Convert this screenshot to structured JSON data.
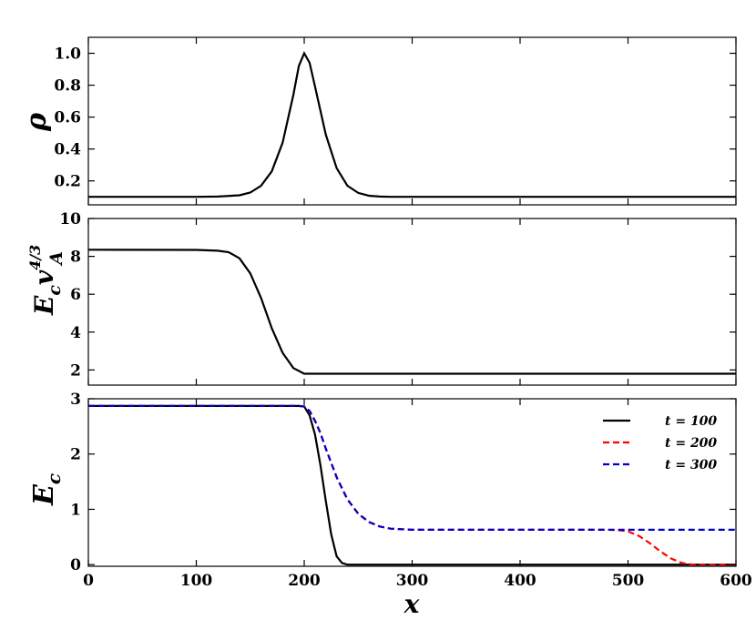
{
  "chart_data": [
    {
      "type": "line",
      "ylabel": "ρ",
      "xlim": [
        0,
        600
      ],
      "ylim": [
        0.05,
        1.1
      ],
      "yticks": [
        "0.2",
        "0.4",
        "0.6",
        "0.8",
        "1.0"
      ],
      "grid": false,
      "series": [
        {
          "color": "#000000",
          "style": "solid",
          "x": [
            0,
            100,
            120,
            140,
            150,
            160,
            170,
            180,
            190,
            195,
            200,
            205,
            210,
            220,
            230,
            240,
            250,
            260,
            270,
            280,
            300,
            400,
            500,
            600
          ],
          "y": [
            0.1,
            0.1,
            0.102,
            0.11,
            0.127,
            0.17,
            0.26,
            0.44,
            0.74,
            0.92,
            1.0,
            0.94,
            0.79,
            0.49,
            0.28,
            0.17,
            0.125,
            0.107,
            0.102,
            0.1,
            0.1,
            0.1,
            0.1,
            0.1
          ]
        }
      ]
    },
    {
      "type": "line",
      "ylabel": "E_c v_A^{4/3}",
      "ylabel_main": "E",
      "ylabel_sub1": "c",
      "ylabel_v": "v",
      "ylabel_sup": "4/3",
      "ylabel_sub2": "A",
      "xlim": [
        0,
        600
      ],
      "ylim": [
        1.2,
        10
      ],
      "yticks": [
        "2",
        "4",
        "6",
        "8",
        "10"
      ],
      "grid": false,
      "series": [
        {
          "color": "#000000",
          "style": "solid",
          "x": [
            0,
            100,
            120,
            130,
            140,
            150,
            160,
            170,
            180,
            190,
            200,
            210,
            300,
            400,
            500,
            600
          ],
          "y": [
            8.35,
            8.34,
            8.3,
            8.22,
            7.9,
            7.1,
            5.8,
            4.2,
            2.9,
            2.1,
            1.8,
            1.8,
            1.8,
            1.8,
            1.8,
            1.8
          ]
        }
      ]
    },
    {
      "type": "line",
      "ylabel": "E_c",
      "ylabel_main": "E",
      "ylabel_sub1": "c",
      "xlabel": "x",
      "xlim": [
        0,
        600
      ],
      "ylim": [
        -0.03,
        3.0
      ],
      "xticks": [
        "0",
        "100",
        "200",
        "300",
        "400",
        "500",
        "600"
      ],
      "yticks": [
        "0",
        "1",
        "2",
        "3"
      ],
      "grid": false,
      "legend_position": "top-right",
      "series": [
        {
          "name": "t = 100",
          "color": "#000000",
          "style": "solid",
          "x": [
            0,
            100,
            195,
            200,
            205,
            210,
            215,
            220,
            225,
            230,
            235,
            240,
            245,
            300,
            400,
            500,
            600
          ],
          "y": [
            2.87,
            2.87,
            2.87,
            2.86,
            2.7,
            2.35,
            1.8,
            1.15,
            0.55,
            0.15,
            0.03,
            0.0,
            0.0,
            0.0,
            0.0,
            0.0,
            0.0
          ]
        },
        {
          "name": "t = 200",
          "color": "#ff0000",
          "style": "dashed",
          "x": [
            0,
            100,
            195,
            200,
            205,
            210,
            215,
            220,
            230,
            240,
            250,
            260,
            270,
            280,
            300,
            400,
            480,
            490,
            500,
            510,
            520,
            530,
            540,
            550,
            560,
            600
          ],
          "y": [
            2.87,
            2.87,
            2.87,
            2.86,
            2.78,
            2.6,
            2.38,
            2.1,
            1.58,
            1.18,
            0.92,
            0.77,
            0.69,
            0.65,
            0.63,
            0.63,
            0.63,
            0.625,
            0.6,
            0.52,
            0.39,
            0.24,
            0.11,
            0.03,
            0.0,
            0.0
          ]
        },
        {
          "name": "t = 300",
          "color": "#0000cc",
          "style": "dashed",
          "x": [
            0,
            100,
            195,
            200,
            205,
            210,
            215,
            220,
            230,
            240,
            250,
            260,
            270,
            280,
            300,
            400,
            500,
            600
          ],
          "y": [
            2.87,
            2.87,
            2.87,
            2.86,
            2.78,
            2.6,
            2.38,
            2.1,
            1.58,
            1.18,
            0.92,
            0.77,
            0.69,
            0.65,
            0.63,
            0.63,
            0.63,
            0.63
          ]
        }
      ]
    }
  ]
}
